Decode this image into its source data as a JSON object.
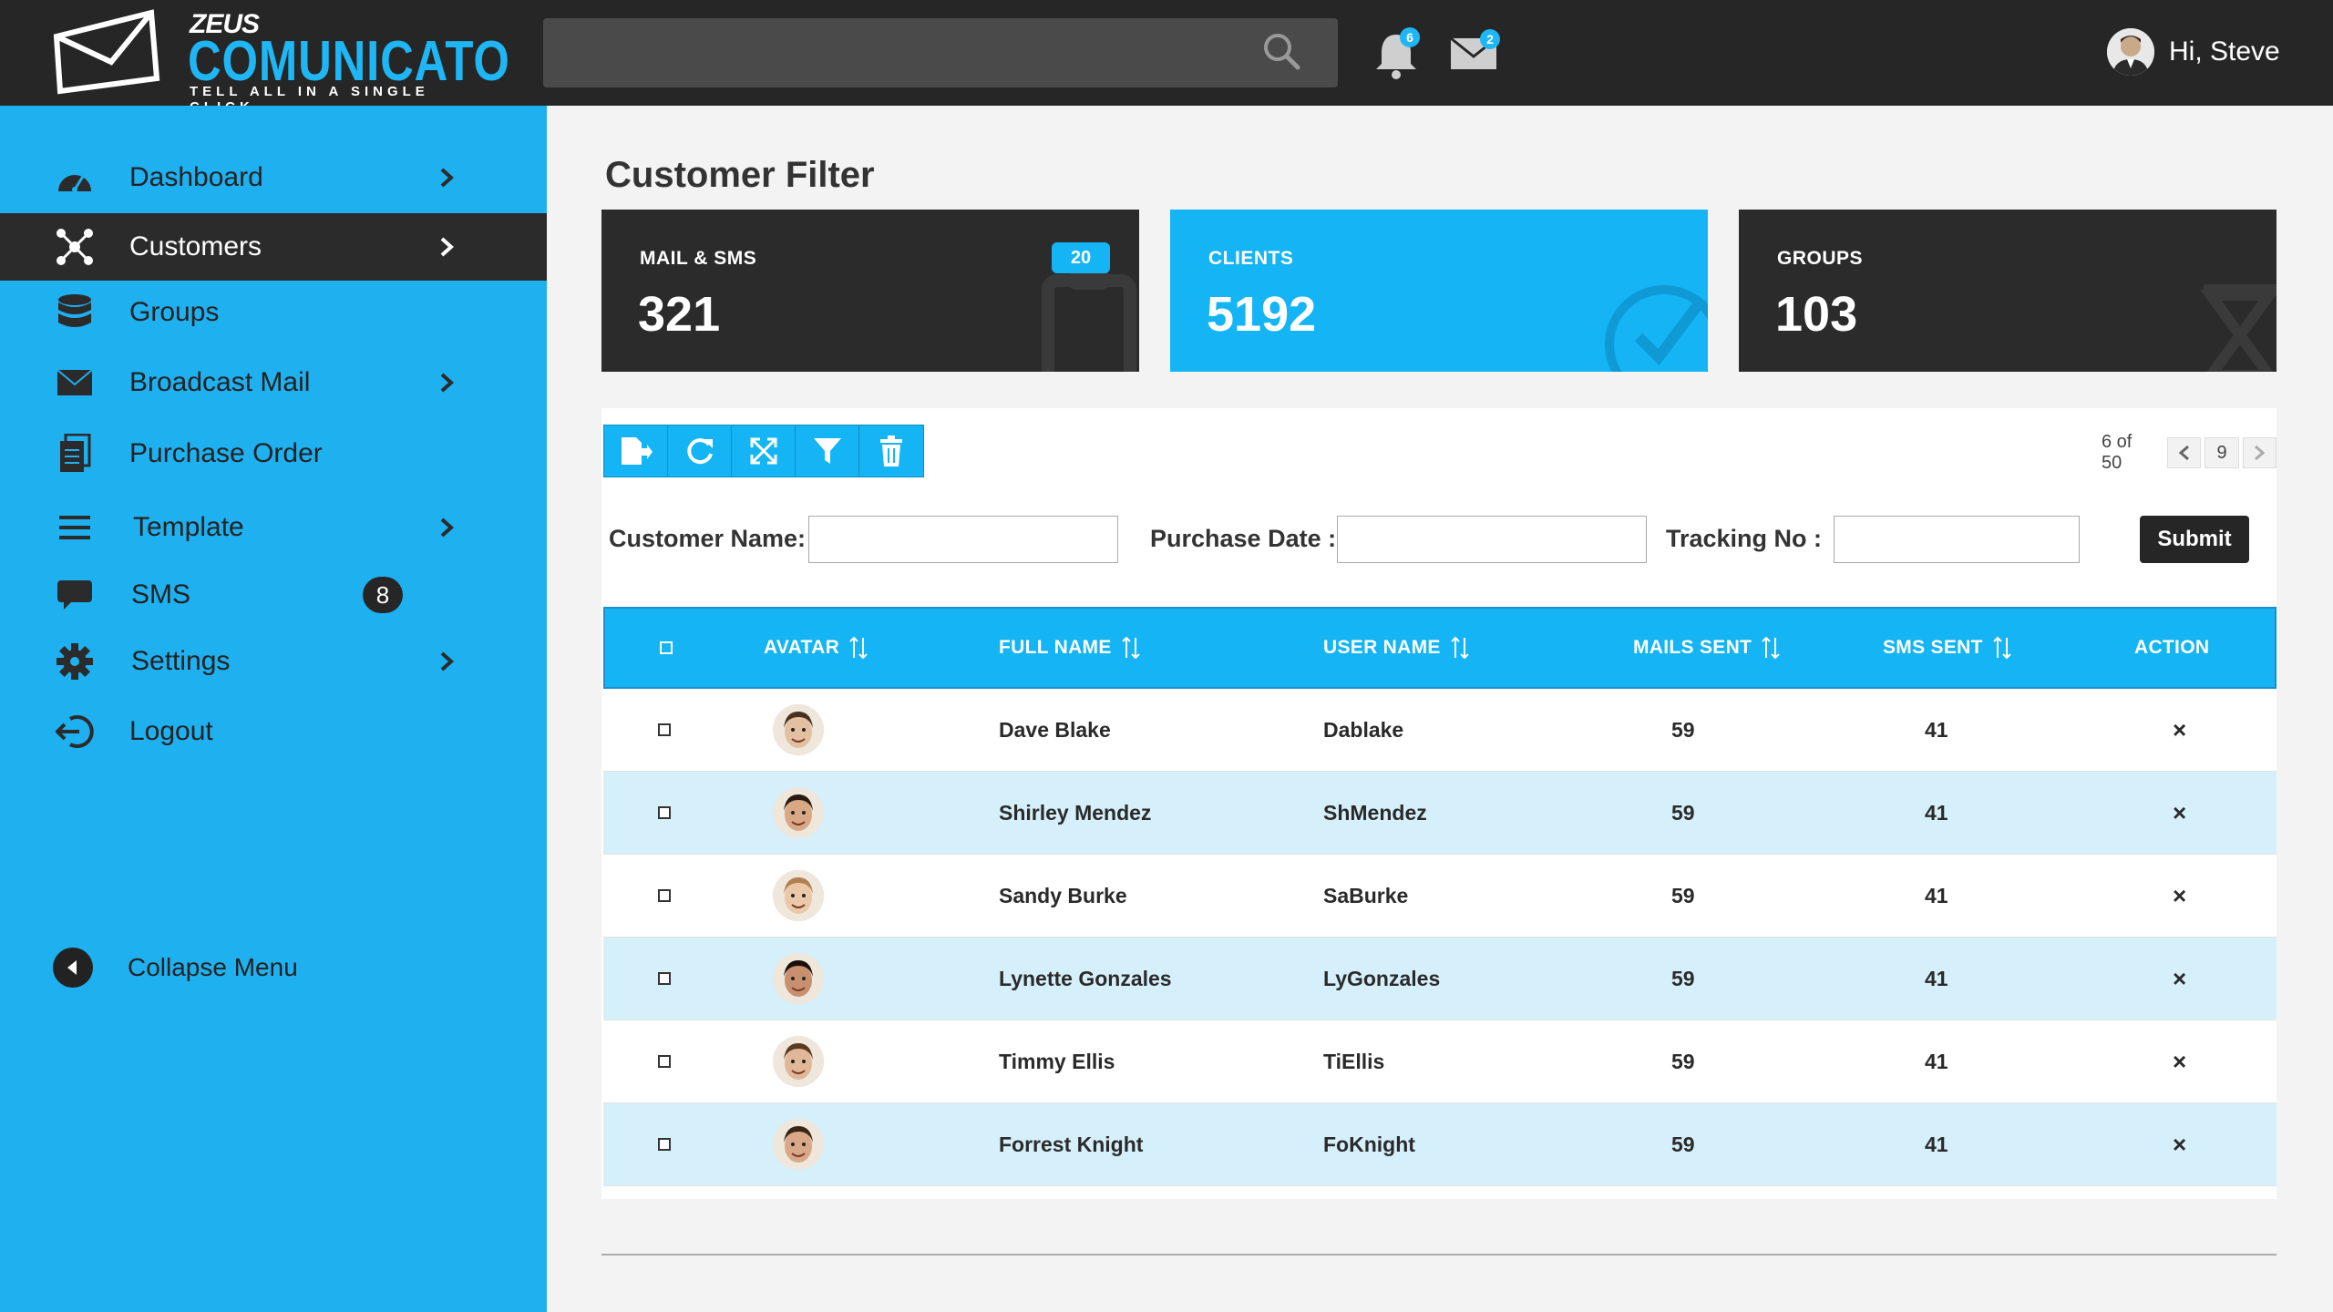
{
  "brand": {
    "top": "ZEUS",
    "name": "COMUNICATO",
    "tagline": "TELL ALL IN A SINGLE CLICK"
  },
  "header": {
    "search_placeholder": "",
    "notifications_count": "6",
    "messages_count": "2",
    "greeting": "Hi, Steve"
  },
  "sidebar": {
    "items": [
      {
        "label": "Dashboard",
        "icon": "dashboard-gauge-icon",
        "chevron": true
      },
      {
        "label": "Customers",
        "icon": "network-icon",
        "chevron": true,
        "active": true
      },
      {
        "label": "Groups",
        "icon": "database-icon",
        "chevron": false
      },
      {
        "label": "Broadcast Mail",
        "icon": "envelope-icon",
        "chevron": true
      },
      {
        "label": "Purchase Order",
        "icon": "document-icon",
        "chevron": false
      },
      {
        "label": "Template",
        "icon": "bars-icon",
        "chevron": true
      },
      {
        "label": "SMS",
        "icon": "chat-bubble-icon",
        "chevron": false,
        "badge": "8"
      },
      {
        "label": "Settings",
        "icon": "gear-icon",
        "chevron": true
      },
      {
        "label": "Logout",
        "icon": "logout-icon",
        "chevron": false
      }
    ],
    "collapse_label": "Collapse Menu"
  },
  "page": {
    "title": "Customer Filter"
  },
  "cards": [
    {
      "label": "MAIL & SMS",
      "value": "321",
      "badge": "20",
      "color": "#2b2b2b"
    },
    {
      "label": "CLIENTS",
      "value": "5192",
      "color": "#14b4f5"
    },
    {
      "label": "GROUPS",
      "value": "103",
      "color": "#2b2b2b"
    }
  ],
  "toolbar": {
    "buttons": [
      "export-icon",
      "refresh-icon",
      "expand-icon",
      "filter-icon",
      "trash-icon"
    ]
  },
  "pager": {
    "text": "6 of 50",
    "page": "9"
  },
  "filters": {
    "customer_name_label": "Customer Name:",
    "customer_name_value": "",
    "purchase_date_label": "Purchase Date :",
    "purchase_date_value": "",
    "tracking_label": "Tracking No :",
    "tracking_value": "",
    "submit_label": "Submit"
  },
  "table": {
    "headers": {
      "avatar": "AVATAR",
      "full_name": "FULL NAME",
      "user_name": "USER NAME",
      "mails_sent": "MAILS SENT",
      "sms_sent": "SMS SENT",
      "action": "ACTION"
    },
    "rows": [
      {
        "full_name": "Dave Blake",
        "user_name": "Dablake",
        "mails_sent": "59",
        "sms_sent": "41",
        "action": "×"
      },
      {
        "full_name": "Shirley Mendez",
        "user_name": "ShMendez",
        "mails_sent": "59",
        "sms_sent": "41",
        "action": "×"
      },
      {
        "full_name": "Sandy Burke",
        "user_name": "SaBurke",
        "mails_sent": "59",
        "sms_sent": "41",
        "action": "×"
      },
      {
        "full_name": "Lynette Gonzales",
        "user_name": "LyGonzales",
        "mails_sent": "59",
        "sms_sent": "41",
        "action": "×"
      },
      {
        "full_name": "Timmy Ellis",
        "user_name": "TiEllis",
        "mails_sent": "59",
        "sms_sent": "41",
        "action": "×"
      },
      {
        "full_name": "Forrest Knight",
        "user_name": "FoKnight",
        "mails_sent": "59",
        "sms_sent": "41",
        "action": "×"
      }
    ]
  },
  "colors": {
    "accent": "#14b4f5",
    "sidebar": "#1fb0f0",
    "dark": "#262626",
    "row_alt": "#d6f0fb"
  }
}
